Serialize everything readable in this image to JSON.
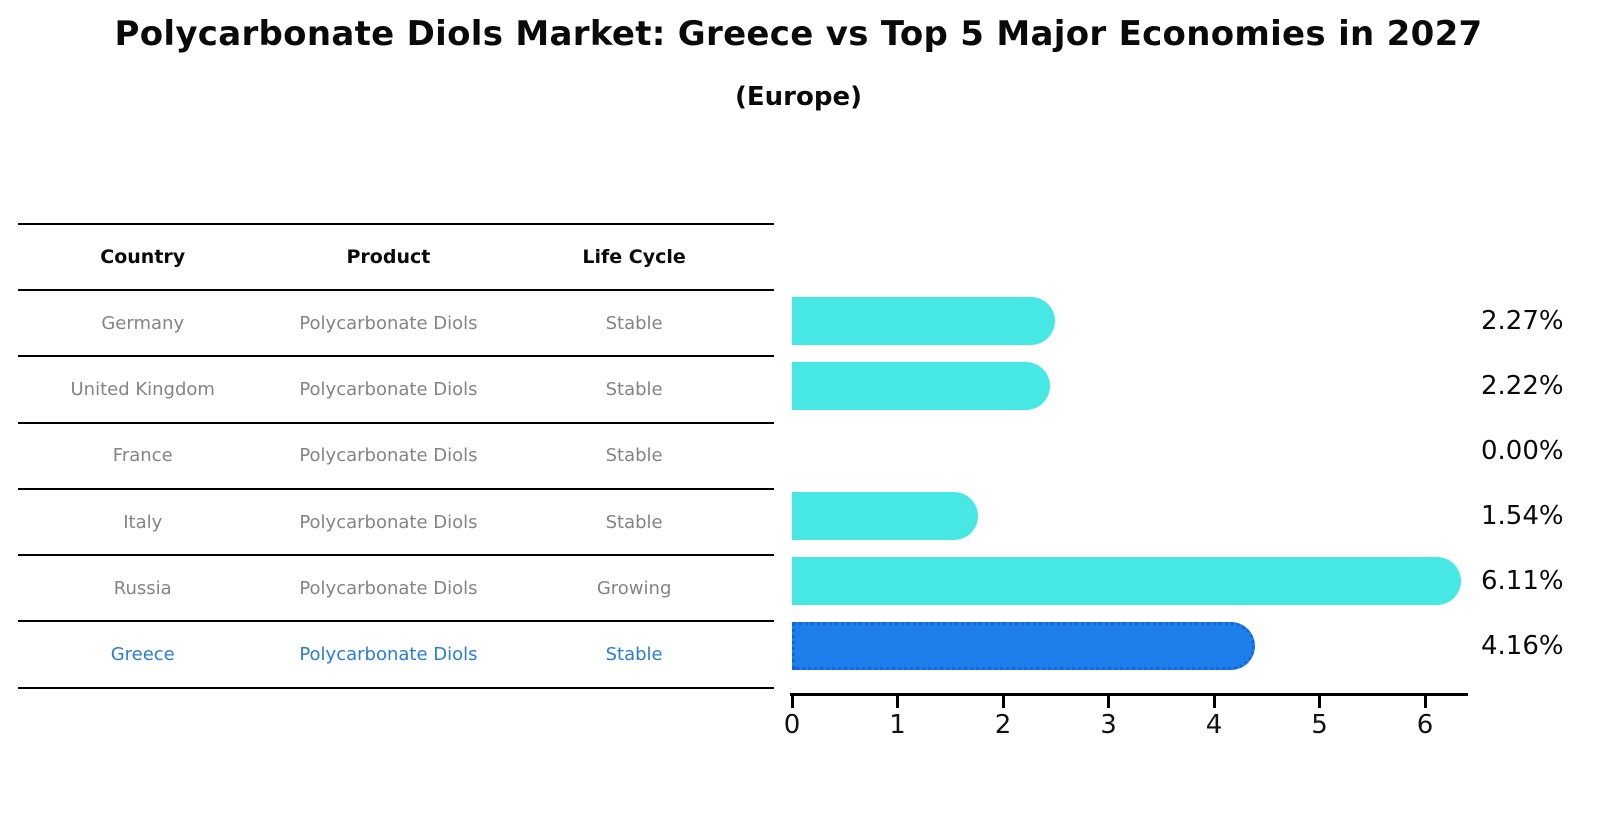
{
  "title": "Polycarbonate Diols Market: Greece vs Top 5 Major Economies in 2027",
  "subtitle": "(Europe)",
  "table": {
    "headers": [
      "Country",
      "Product",
      "Life Cycle"
    ],
    "rows": [
      {
        "country": "Germany",
        "product": "Polycarbonate Diols",
        "life_cycle": "Stable",
        "highlight": false
      },
      {
        "country": "United Kingdom",
        "product": "Polycarbonate Diols",
        "life_cycle": "Stable",
        "highlight": false
      },
      {
        "country": "France",
        "product": "Polycarbonate Diols",
        "life_cycle": "Stable",
        "highlight": false
      },
      {
        "country": "Italy",
        "product": "Polycarbonate Diols",
        "life_cycle": "Stable",
        "highlight": false
      },
      {
        "country": "Russia",
        "product": "Polycarbonate Diols",
        "life_cycle": "Growing",
        "highlight": false
      },
      {
        "country": "Greece",
        "product": "Polycarbonate Diols",
        "life_cycle": "Stable",
        "highlight": true
      }
    ]
  },
  "chart_data": {
    "type": "bar",
    "orientation": "horizontal",
    "categories": [
      "Germany",
      "United Kingdom",
      "France",
      "Italy",
      "Russia",
      "Greece"
    ],
    "values": [
      2.27,
      2.22,
      0.0,
      1.54,
      6.11,
      4.16
    ],
    "value_labels": [
      "2.27%",
      "2.22%",
      "0.00%",
      "1.54%",
      "6.11%",
      "4.16%"
    ],
    "highlight_index": 5,
    "x_ticks": [
      "0",
      "1",
      "2",
      "3",
      "4",
      "5",
      "6"
    ],
    "xlim": [
      0,
      6.4
    ],
    "grid": false,
    "legend": "none",
    "bar_color": "#47e8e4",
    "highlight_bar_color": "#1e7eeb",
    "highlight_border_color": "#1566d9"
  },
  "colors": {
    "title_text": "#0a0a0a",
    "row_text": "#848484",
    "highlight_text": "#2a7cd4",
    "axis": "#000000"
  }
}
